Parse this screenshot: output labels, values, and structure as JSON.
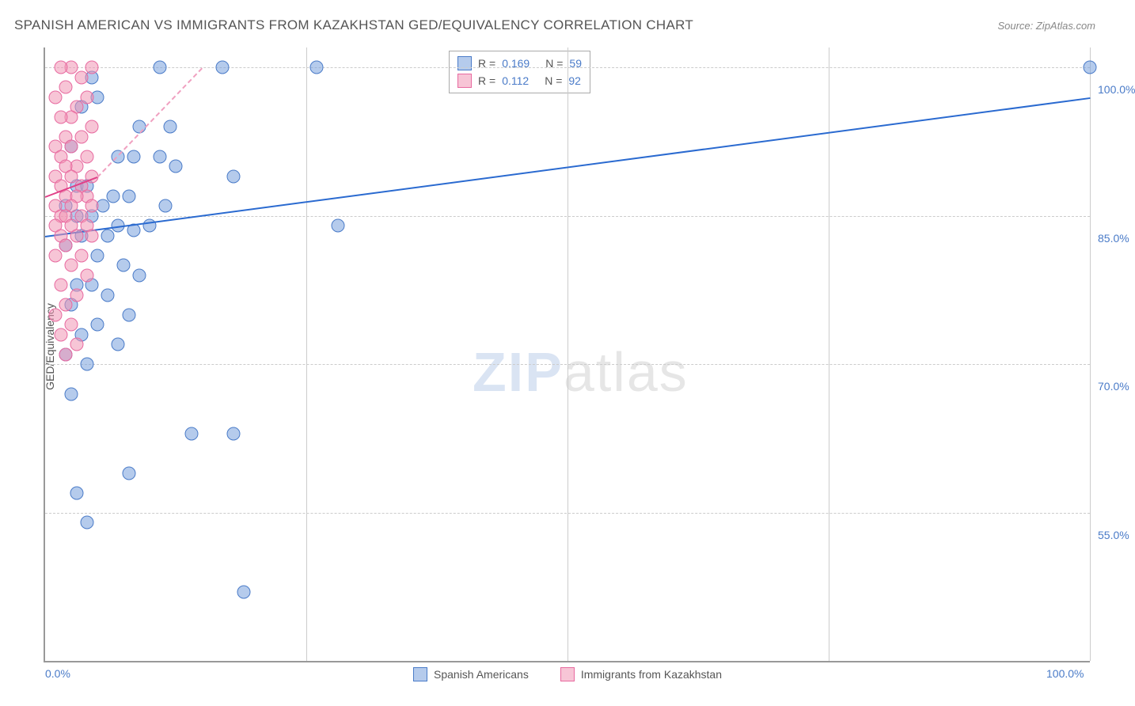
{
  "title": "SPANISH AMERICAN VS IMMIGRANTS FROM KAZAKHSTAN GED/EQUIVALENCY CORRELATION CHART",
  "source": "Source: ZipAtlas.com",
  "ylabel": "GED/Equivalency",
  "watermark_a": "ZIP",
  "watermark_b": "atlas",
  "chart": {
    "type": "scatter",
    "xlim": [
      0,
      100
    ],
    "ylim": [
      40,
      102
    ],
    "yticks": [
      {
        "v": 100,
        "label": "100.0%"
      },
      {
        "v": 85,
        "label": "85.0%"
      },
      {
        "v": 70,
        "label": "70.0%"
      },
      {
        "v": 55,
        "label": "55.0%"
      }
    ],
    "xticks_grid": [
      25,
      50,
      75,
      100
    ],
    "xticks_label": [
      {
        "v": 0,
        "label": "0.0%"
      },
      {
        "v": 100,
        "label": "100.0%"
      }
    ],
    "series": [
      {
        "name": "Spanish Americans",
        "color_fill": "rgba(120,160,220,0.55)",
        "color_stroke": "#4a7bc8",
        "R": "0.169",
        "N": "59",
        "trend": {
          "x1": 0,
          "y1": 83,
          "x2": 100,
          "y2": 97,
          "color": "#2a6ad0",
          "solid": true
        },
        "points": [
          [
            100,
            100
          ],
          [
            26,
            100
          ],
          [
            17,
            100
          ],
          [
            11,
            100
          ],
          [
            4.5,
            99
          ],
          [
            5,
            97
          ],
          [
            3.5,
            96
          ],
          [
            9,
            94
          ],
          [
            12,
            94
          ],
          [
            2.5,
            92
          ],
          [
            7,
            91
          ],
          [
            8.5,
            91
          ],
          [
            11,
            91
          ],
          [
            12.5,
            90
          ],
          [
            18,
            89
          ],
          [
            3,
            88
          ],
          [
            4,
            88
          ],
          [
            6.5,
            87
          ],
          [
            8,
            87
          ],
          [
            2,
            86
          ],
          [
            5.5,
            86
          ],
          [
            11.5,
            86
          ],
          [
            3,
            85
          ],
          [
            4.5,
            85
          ],
          [
            7,
            84
          ],
          [
            10,
            84
          ],
          [
            28,
            84
          ],
          [
            8.5,
            83.5
          ],
          [
            3.5,
            83
          ],
          [
            6,
            83
          ],
          [
            2,
            82
          ],
          [
            5,
            81
          ],
          [
            7.5,
            80
          ],
          [
            9,
            79
          ],
          [
            3,
            78
          ],
          [
            4.5,
            78
          ],
          [
            6,
            77
          ],
          [
            2.5,
            76
          ],
          [
            8,
            75
          ],
          [
            5,
            74
          ],
          [
            3.5,
            73
          ],
          [
            7,
            72
          ],
          [
            2,
            71
          ],
          [
            4,
            70
          ],
          [
            2.5,
            67
          ],
          [
            14,
            63
          ],
          [
            18,
            63
          ],
          [
            8,
            59
          ],
          [
            3,
            57
          ],
          [
            4,
            54
          ],
          [
            19,
            47
          ]
        ]
      },
      {
        "name": "Immigrants from Kazakhstan",
        "color_fill": "rgba(240,150,180,0.55)",
        "color_stroke": "#e86aa0",
        "R": "0.112",
        "N": "92",
        "trend": {
          "x1": 0,
          "y1": 87,
          "x2": 5,
          "y2": 89,
          "color": "#e04088",
          "solid": true
        },
        "trend_dash": {
          "x1": 5,
          "y1": 89,
          "x2": 15,
          "y2": 100,
          "color": "#f0a0c0"
        },
        "points": [
          [
            4.5,
            100
          ],
          [
            2.5,
            100
          ],
          [
            1.5,
            100
          ],
          [
            3.5,
            99
          ],
          [
            2,
            98
          ],
          [
            4,
            97
          ],
          [
            1,
            97
          ],
          [
            3,
            96
          ],
          [
            2.5,
            95
          ],
          [
            1.5,
            95
          ],
          [
            4.5,
            94
          ],
          [
            2,
            93
          ],
          [
            3.5,
            93
          ],
          [
            1,
            92
          ],
          [
            2.5,
            92
          ],
          [
            4,
            91
          ],
          [
            1.5,
            91
          ],
          [
            3,
            90
          ],
          [
            2,
            90
          ],
          [
            4.5,
            89
          ],
          [
            1,
            89
          ],
          [
            2.5,
            89
          ],
          [
            3.5,
            88
          ],
          [
            1.5,
            88
          ],
          [
            4,
            87
          ],
          [
            2,
            87
          ],
          [
            3,
            87
          ],
          [
            1,
            86
          ],
          [
            2.5,
            86
          ],
          [
            4.5,
            86
          ],
          [
            1.5,
            85
          ],
          [
            3.5,
            85
          ],
          [
            2,
            85
          ],
          [
            4,
            84
          ],
          [
            1,
            84
          ],
          [
            2.5,
            84
          ],
          [
            3,
            83
          ],
          [
            1.5,
            83
          ],
          [
            4.5,
            83
          ],
          [
            2,
            82
          ],
          [
            3.5,
            81
          ],
          [
            1,
            81
          ],
          [
            2.5,
            80
          ],
          [
            4,
            79
          ],
          [
            1.5,
            78
          ],
          [
            3,
            77
          ],
          [
            2,
            76
          ],
          [
            1,
            75
          ],
          [
            2.5,
            74
          ],
          [
            1.5,
            73
          ],
          [
            3,
            72
          ],
          [
            2,
            71
          ]
        ]
      }
    ],
    "legend_bottom": [
      {
        "label": "Spanish Americans",
        "fill": "rgba(120,160,220,0.55)",
        "stroke": "#4a7bc8"
      },
      {
        "label": "Immigrants from Kazakhstan",
        "fill": "rgba(240,150,180,0.55)",
        "stroke": "#e86aa0"
      }
    ],
    "tick_color": "#4a7bc8",
    "background_color": "#ffffff"
  }
}
